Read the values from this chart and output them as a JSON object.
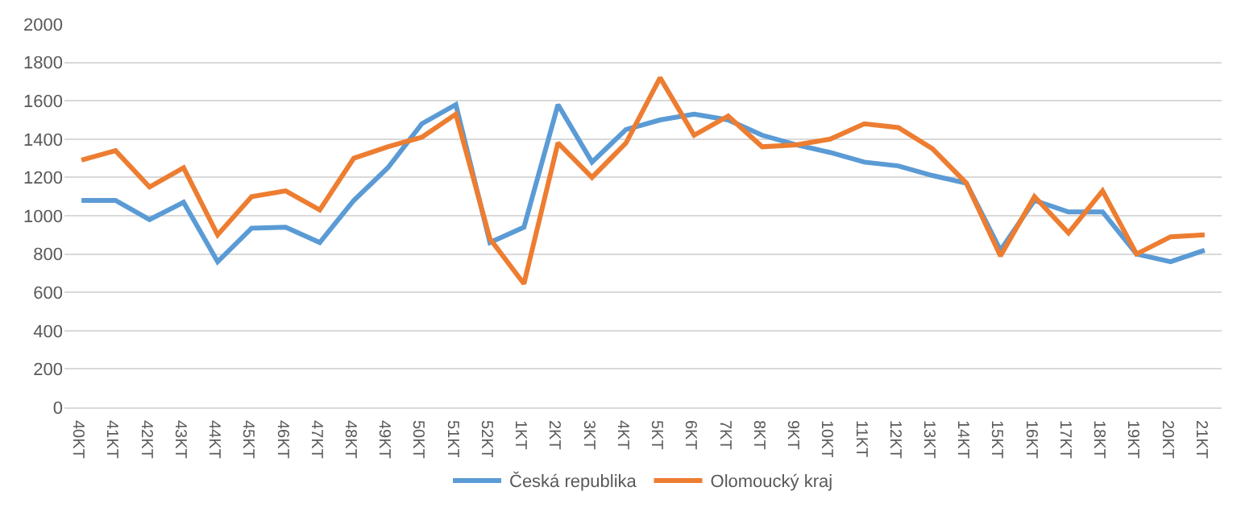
{
  "chart_data": {
    "type": "line",
    "categories": [
      "40KT",
      "41KT",
      "42KT",
      "43KT",
      "44KT",
      "45KT",
      "46KT",
      "47KT",
      "48KT",
      "49KT",
      "50KT",
      "51KT",
      "52KT",
      "1KT",
      "2KT",
      "3KT",
      "4KT",
      "5KT",
      "6KT",
      "7KT",
      "8KT",
      "9KT",
      "10KT",
      "11KT",
      "12KT",
      "13KT",
      "14KT",
      "15KT",
      "16KT",
      "17KT",
      "18KT",
      "19KT",
      "20KT",
      "21KT"
    ],
    "series": [
      {
        "name": "Česká republika",
        "color": "#5b9bd5",
        "values": [
          1080,
          1080,
          980,
          1070,
          760,
          935,
          940,
          860,
          1080,
          1250,
          1480,
          1580,
          860,
          940,
          1580,
          1280,
          1450,
          1500,
          1530,
          1500,
          1420,
          1370,
          1330,
          1280,
          1260,
          1210,
          1170,
          820,
          1080,
          1020,
          1020,
          800,
          760,
          820
        ]
      },
      {
        "name": "Olomoucký kraj",
        "color": "#ed7d31",
        "values": [
          1290,
          1340,
          1150,
          1250,
          900,
          1100,
          1130,
          1030,
          1300,
          1360,
          1410,
          1530,
          880,
          645,
          1380,
          1200,
          1380,
          1720,
          1420,
          1520,
          1360,
          1370,
          1400,
          1480,
          1460,
          1350,
          1170,
          790,
          1100,
          910,
          1130,
          800,
          890,
          900
        ]
      }
    ],
    "ylim": [
      0,
      2000
    ],
    "yticks": [
      0,
      200,
      400,
      600,
      800,
      1000,
      1200,
      1400,
      1600,
      1800,
      2000
    ],
    "grid": "y",
    "legend": "bottom",
    "marker": "none",
    "line_style": "solid"
  }
}
